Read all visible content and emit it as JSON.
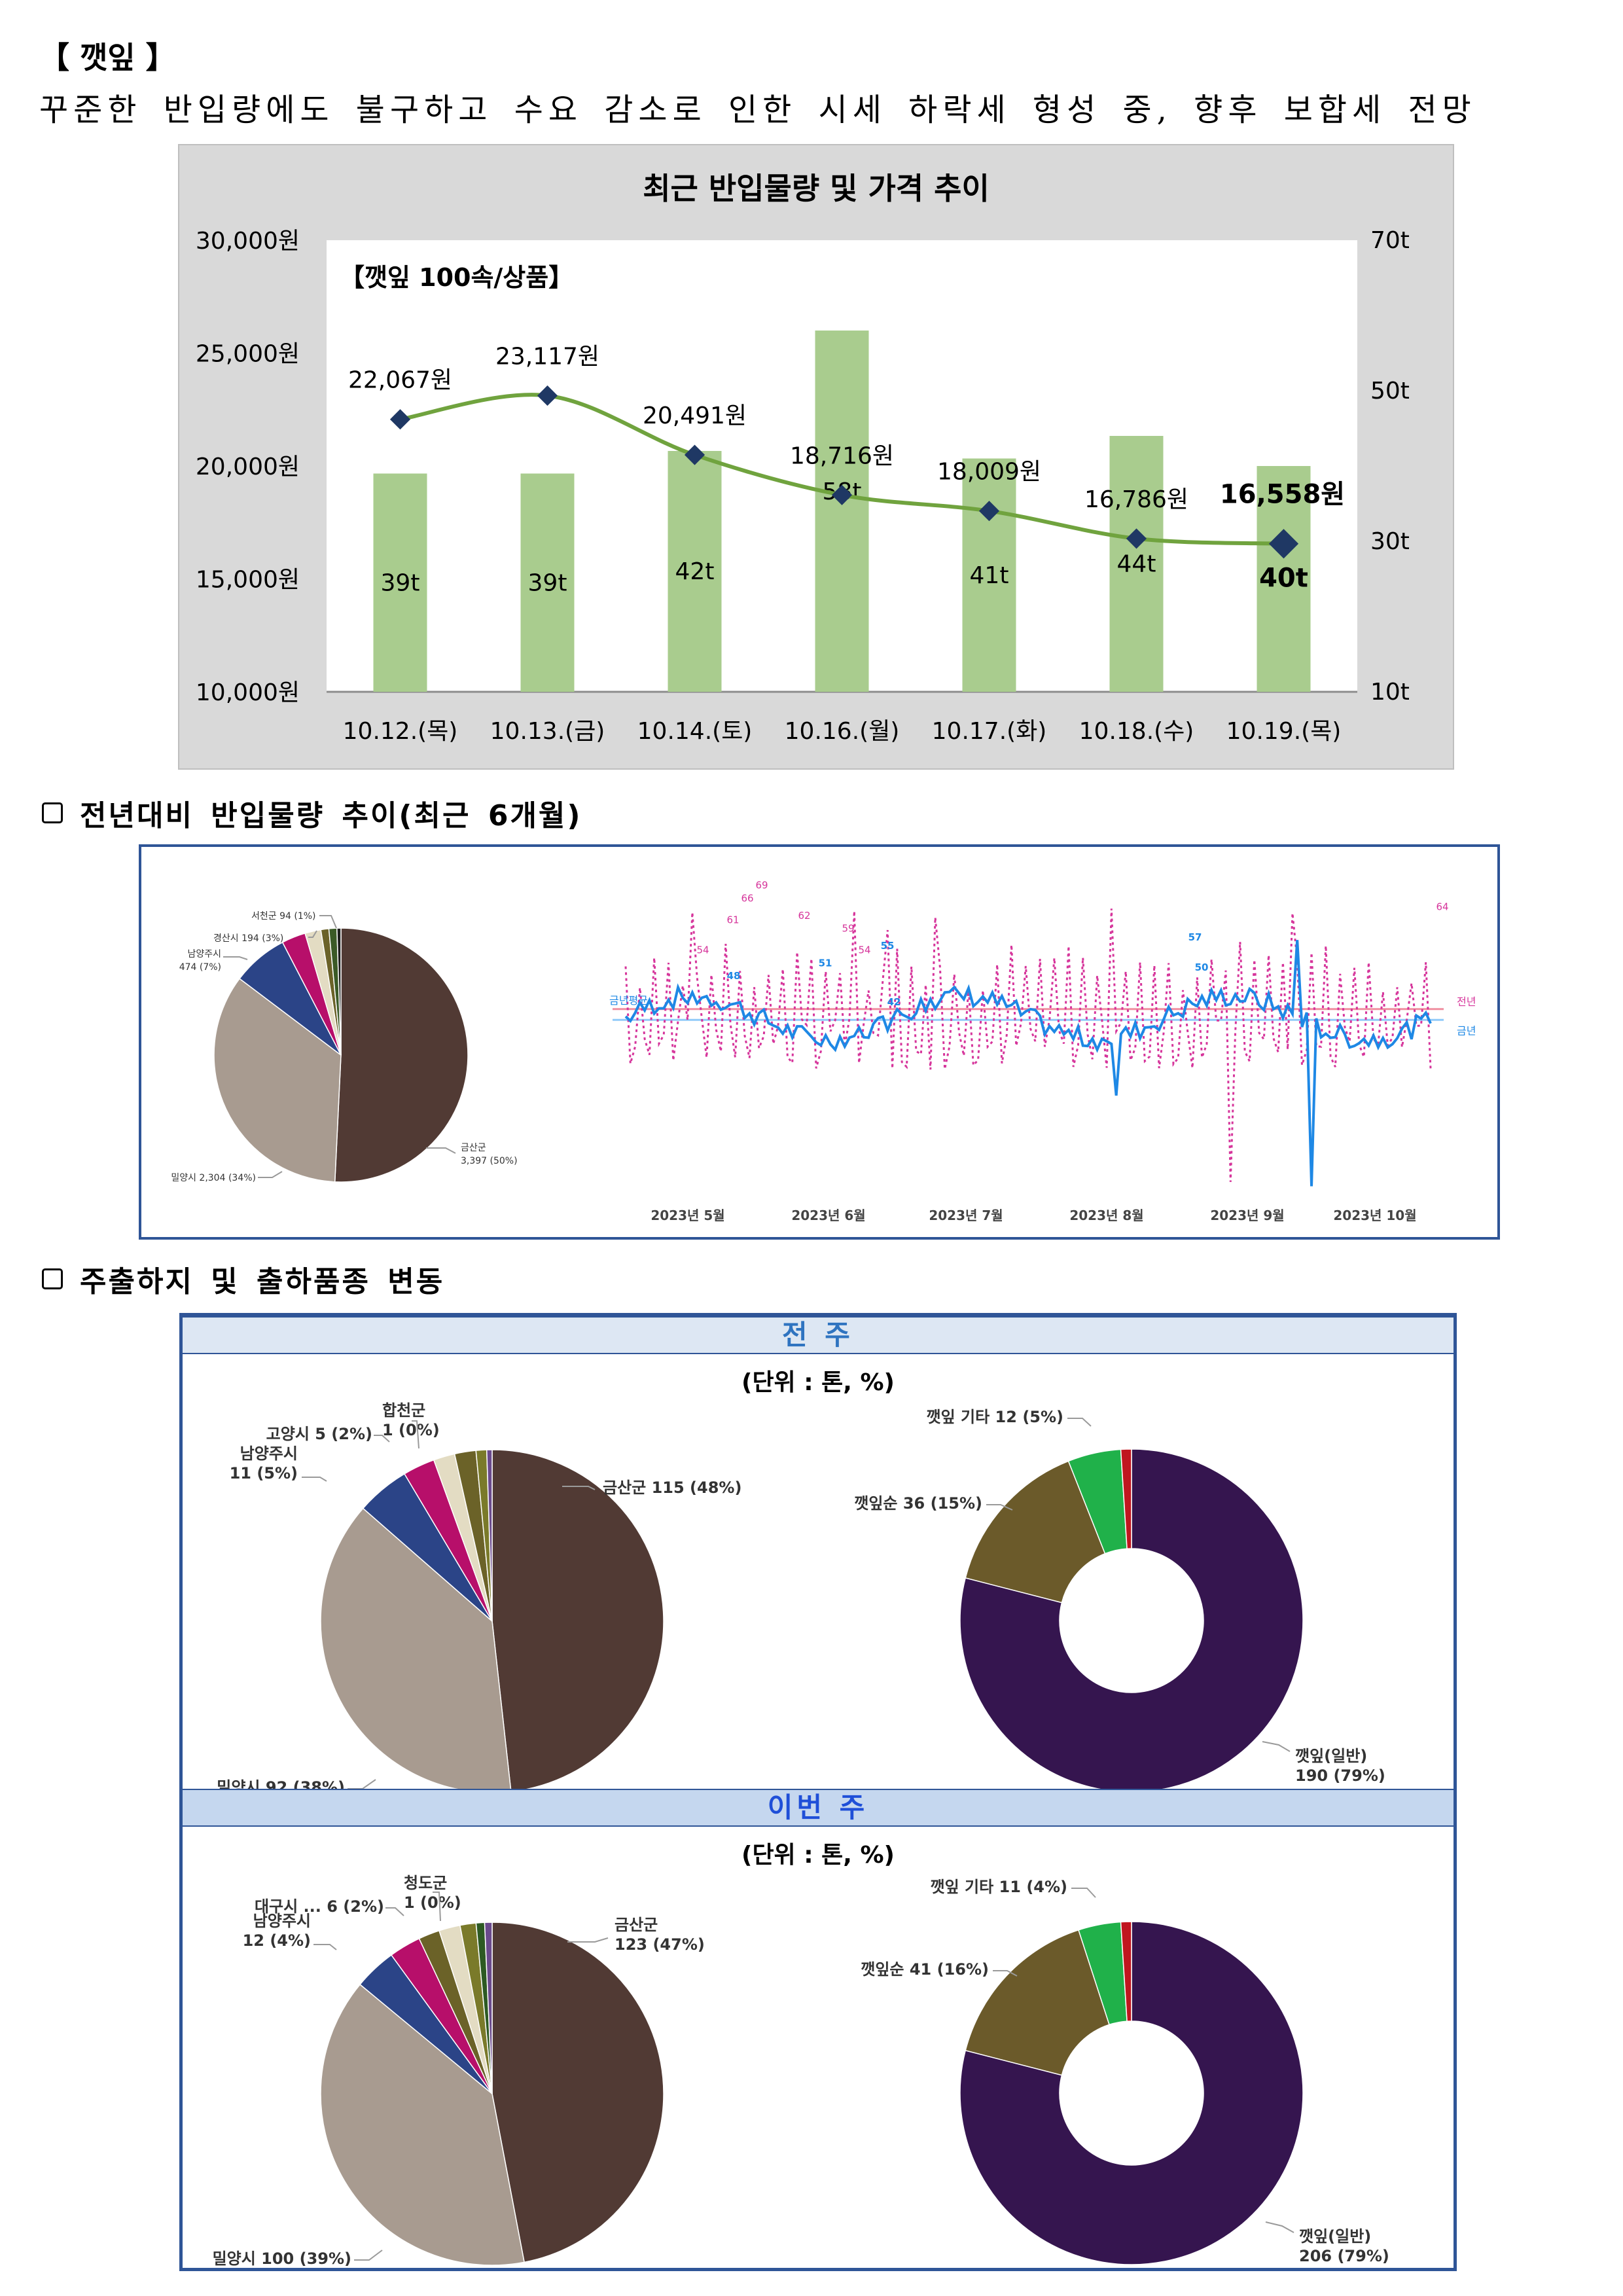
{
  "heading": "【 깻잎 】",
  "summary": "꾸준한 반입량에도 불구하고 수요 감소로 인한 시세 하락세 형성 중, 향후 보합세 전망",
  "price_chart": {
    "title": "최근 반입물량 및 가격 추이",
    "subtitle": "【깻잎 100속/상품】",
    "y_left_ticks": [
      "30,000원",
      "25,000원",
      "20,000원",
      "15,000원",
      "10,000원"
    ],
    "y_right_ticks": [
      "70t",
      "50t",
      "30t",
      "10t"
    ],
    "chart_data": {
      "type": "bar+line",
      "categories": [
        "10.12.(목)",
        "10.13.(금)",
        "10.14.(토)",
        "10.16.(월)",
        "10.17.(화)",
        "10.18.(수)",
        "10.19.(목)"
      ],
      "series": [
        {
          "type": "bar",
          "axis": "right",
          "values": [
            39,
            39,
            42,
            58,
            41,
            44,
            40
          ],
          "labels": [
            "39t",
            "39t",
            "42t",
            "58t",
            "41t",
            "44t",
            "40t"
          ]
        },
        {
          "type": "line",
          "axis": "left",
          "values": [
            22067,
            23117,
            20491,
            18716,
            18009,
            16786,
            16558
          ],
          "labels": [
            "22,067원",
            "23,117원",
            "20,491원",
            "18,716원",
            "18,009원",
            "16,786원",
            "16,558원"
          ]
        }
      ],
      "y_left_range": [
        10000,
        30000
      ],
      "y_right_range": [
        10,
        70
      ],
      "colors": {
        "bar": "#a9cc8e",
        "line": "#70a33e",
        "marker": "#1f3864"
      }
    }
  },
  "section2": {
    "title": "전년대비 반입물량 추이(최근 6개월)",
    "pie_chart": {
      "type": "pie",
      "slices": [
        {
          "label": "금산군",
          "value_label": "3,397 (50%)",
          "value": 3397,
          "percent": 50,
          "color": "#513a34"
        },
        {
          "label": "밀양시",
          "value_label": "2,304 (34%)",
          "value": 2304,
          "percent": 34,
          "color": "#a89b90"
        },
        {
          "label": "남양주시",
          "value_label": "474 (7%)",
          "value": 474,
          "percent": 7,
          "color": "#2b4487"
        },
        {
          "label": "경산시",
          "value_label": "194 (3%)",
          "value": 194,
          "percent": 3,
          "color": "#b70f6a"
        },
        {
          "label": "",
          "value_label": "",
          "value": 120,
          "percent": 2,
          "color": "#e3dcc3"
        },
        {
          "label": "서천군",
          "value_label": "94 (1%)",
          "value": 94,
          "percent": 1,
          "color": "#6b6228"
        },
        {
          "label": "",
          "value_label": "",
          "value": 60,
          "percent": 1,
          "color": "#3b5a27"
        },
        {
          "label": "",
          "value_label": "",
          "value": 30,
          "percent": 0.5,
          "color": "#1d1d1d"
        }
      ]
    },
    "line_chart": {
      "type": "line",
      "series_labels": [
        "전년",
        "금년"
      ],
      "legend_left": "금년평균",
      "x_ticks": [
        "2023년 5월",
        "2023년 6월",
        "2023년 7월",
        "2023년 8월",
        "2023년 9월",
        "2023년 10월"
      ],
      "pink_peaks": [
        "54",
        "61",
        "66",
        "69",
        "62",
        "59",
        "54",
        "64"
      ],
      "blue_peaks": [
        "48",
        "51",
        "55",
        "57",
        "50",
        "42"
      ],
      "colors": {
        "prev_year": "#d6359b",
        "this_year": "#1e88e5",
        "avg_line_pink": "#f08fa0",
        "avg_line_blue": "#90caf9"
      }
    }
  },
  "section3": {
    "title": "주출하지 및 출하품종 변동",
    "unit": "(단위 : 톤, %)",
    "prev_week": {
      "label": "전 주",
      "origin_pie": {
        "type": "pie",
        "slices": [
          {
            "label": "금산군 115 (48%)",
            "percent": 48,
            "color": "#513a34"
          },
          {
            "label": "밀양시 92 (38%)",
            "percent": 38,
            "color": "#a89b90"
          },
          {
            "label": "남양주시 11 (5%)",
            "percent": 5,
            "color": "#2b4487"
          },
          {
            "label": "",
            "percent": 3,
            "color": "#b70f6a"
          },
          {
            "label": "고양시 5 (2%)",
            "percent": 2,
            "color": "#e3dcc3"
          },
          {
            "label": "",
            "percent": 2,
            "color": "#6b6228"
          },
          {
            "label": "",
            "percent": 1,
            "color": "#7a7a2a"
          },
          {
            "label": "합천군 1 (0%)",
            "percent": 0.5,
            "color": "#6a4a8c"
          }
        ]
      },
      "variety_donut": {
        "type": "pie",
        "slices": [
          {
            "label": "깻잎(일반) 190 (79%)",
            "percent": 79,
            "color": "#35154f"
          },
          {
            "label": "깻잎순 36 (15%)",
            "percent": 15,
            "color": "#6b5a2a"
          },
          {
            "label": "깻잎 기타 12 (5%)",
            "percent": 5,
            "color": "#20b14a"
          },
          {
            "label": "",
            "percent": 1,
            "color": "#c0161f"
          }
        ]
      }
    },
    "this_week": {
      "label": "이번 주",
      "origin_pie": {
        "type": "pie",
        "slices": [
          {
            "label": "금산군 123 (47%)",
            "percent": 47,
            "color": "#513a34"
          },
          {
            "label": "밀양시 100 (39%)",
            "percent": 39,
            "color": "#a89b90"
          },
          {
            "label": "남양주시 12 (4%)",
            "percent": 4,
            "color": "#2b4487"
          },
          {
            "label": "",
            "percent": 3,
            "color": "#b70f6a"
          },
          {
            "label": "",
            "percent": 2,
            "color": "#6b6228"
          },
          {
            "label": "대구시 ... 6 (2%)",
            "percent": 2,
            "color": "#e3dcc3"
          },
          {
            "label": "",
            "percent": 1.5,
            "color": "#7a7a2a"
          },
          {
            "label": "청도군 1 (0%)",
            "percent": 0.8,
            "color": "#2d5a23"
          },
          {
            "label": "",
            "percent": 0.7,
            "color": "#6a4a8c"
          }
        ]
      },
      "variety_donut": {
        "type": "pie",
        "slices": [
          {
            "label": "깻잎(일반) 206 (79%)",
            "percent": 79,
            "color": "#35154f"
          },
          {
            "label": "깻잎순 41 (16%)",
            "percent": 16,
            "color": "#6b5a2a"
          },
          {
            "label": "깻잎 기타 11 (4%)",
            "percent": 4,
            "color": "#20b14a"
          },
          {
            "label": "",
            "percent": 1,
            "color": "#c0161f"
          }
        ]
      }
    }
  }
}
